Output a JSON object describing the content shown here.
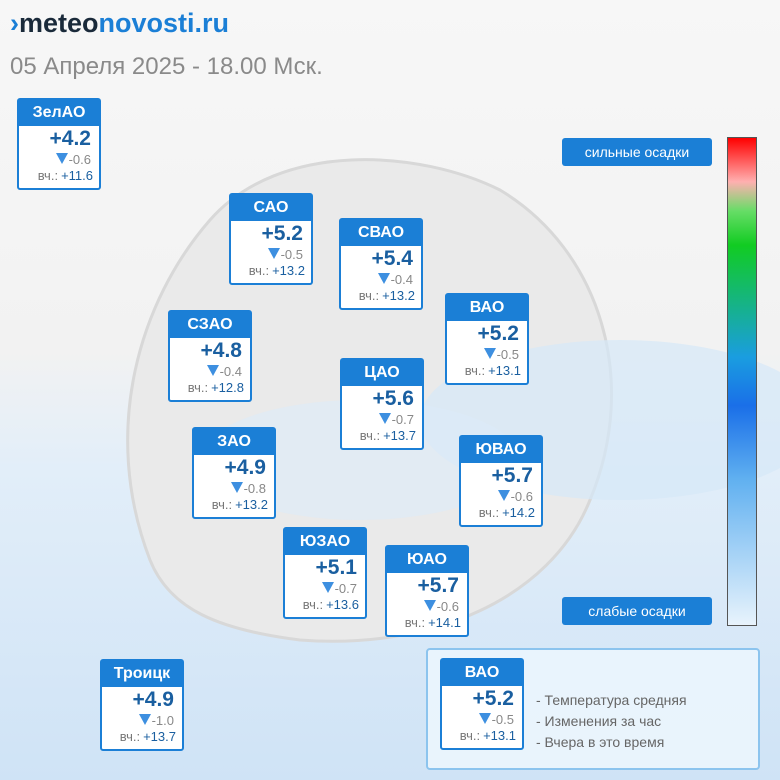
{
  "header": {
    "logo_bold": "meteo",
    "logo_light": "novosti.ru",
    "subtitle": "05 Апреля 2025 - 18.00 Мск."
  },
  "yesterday_label": "вч.:",
  "districts": [
    {
      "name": "ЗелАО",
      "temp": "+4.2",
      "change": "-0.6",
      "yesterday": "+11.6"
    },
    {
      "name": "САО",
      "temp": "+5.2",
      "change": "-0.5",
      "yesterday": "+13.2"
    },
    {
      "name": "СВАО",
      "temp": "+5.4",
      "change": "-0.4",
      "yesterday": "+13.2"
    },
    {
      "name": "ВАО",
      "temp": "+5.2",
      "change": "-0.5",
      "yesterday": "+13.1"
    },
    {
      "name": "СЗАО",
      "temp": "+4.8",
      "change": "-0.4",
      "yesterday": "+12.8"
    },
    {
      "name": "ЦАО",
      "temp": "+5.6",
      "change": "-0.7",
      "yesterday": "+13.7"
    },
    {
      "name": "ЗАО",
      "temp": "+4.9",
      "change": "-0.8",
      "yesterday": "+13.2"
    },
    {
      "name": "ЮВАО",
      "temp": "+5.7",
      "change": "-0.6",
      "yesterday": "+14.2"
    },
    {
      "name": "ЮЗАО",
      "temp": "+5.1",
      "change": "-0.7",
      "yesterday": "+13.6"
    },
    {
      "name": "ЮАО",
      "temp": "+5.7",
      "change": "-0.6",
      "yesterday": "+14.1"
    },
    {
      "name": "Троицк",
      "temp": "+4.9",
      "change": "-1.0",
      "yesterday": "+13.7"
    }
  ],
  "precip_scale": {
    "high": "сильные осадки",
    "low": "слабые осадки"
  },
  "legend": {
    "sample": {
      "name": "ВАО",
      "temp": "+5.2",
      "change": "-0.5",
      "yesterday": "+13.1"
    },
    "items": [
      "- Температура средняя",
      "- Изменения за час",
      "- Вчера в это время"
    ]
  }
}
